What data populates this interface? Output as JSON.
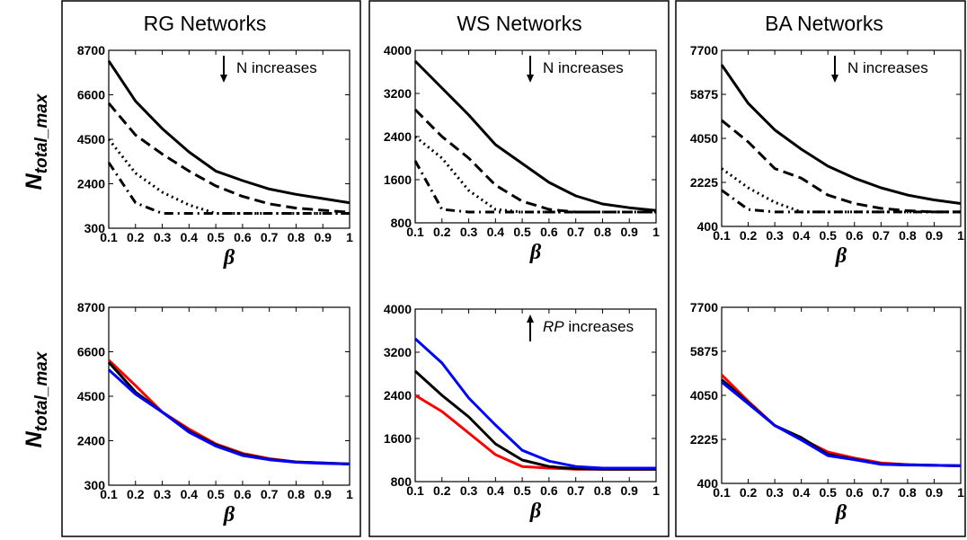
{
  "ylabel": {
    "main": "N",
    "sub": "total_max"
  },
  "panels": [
    {
      "title": "RG Networks"
    },
    {
      "title": "WS Networks"
    },
    {
      "title": "BA Networks"
    }
  ],
  "chart_data": [
    {
      "type": "line",
      "title": "RG Networks",
      "xlabel": "β",
      "ylabel": "N_total_max",
      "xlim": [
        0.1,
        1
      ],
      "ylim": [
        300,
        8700
      ],
      "xticks": [
        "0.1",
        "0.2",
        "0.3",
        "0.4",
        "0.5",
        "0.6",
        "0.7",
        "0.8",
        "0.9",
        "1"
      ],
      "yticks": [
        300,
        2400,
        4500,
        6600,
        8700
      ],
      "annotation": {
        "arrow": "down",
        "prefix": "",
        "italic": "",
        "text": "N increases"
      },
      "x": [
        0.1,
        0.2,
        0.3,
        0.4,
        0.5,
        0.6,
        0.7,
        0.8,
        0.9,
        1.0
      ],
      "series": [
        {
          "style": "solid",
          "color": "#000000",
          "values": [
            8200,
            6300,
            5000,
            3900,
            3000,
            2550,
            2150,
            1900,
            1700,
            1500
          ]
        },
        {
          "style": "dashed",
          "color": "#000000",
          "values": [
            6200,
            4700,
            3800,
            3000,
            2300,
            1800,
            1450,
            1250,
            1150,
            1050
          ]
        },
        {
          "style": "dotted",
          "color": "#000000",
          "values": [
            4500,
            2900,
            2000,
            1400,
            1000,
            1000,
            1000,
            1000,
            1000,
            1000
          ]
        },
        {
          "style": "dashdot",
          "color": "#000000",
          "values": [
            3400,
            1500,
            1000,
            1000,
            1000,
            1000,
            1000,
            1000,
            1000,
            1000
          ]
        }
      ]
    },
    {
      "type": "line",
      "title": "WS Networks",
      "xlabel": "β",
      "ylabel": "N_total_max",
      "xlim": [
        0.1,
        1
      ],
      "ylim": [
        800,
        4000
      ],
      "xticks": [
        "0.1",
        "0.2",
        "0.3",
        "0.4",
        "0.5",
        "0.6",
        "0.7",
        "0.8",
        "0.9",
        "1"
      ],
      "yticks": [
        800,
        1600,
        2400,
        3200,
        4000
      ],
      "annotation": {
        "arrow": "down",
        "prefix": "",
        "italic": "",
        "text": "N increases"
      },
      "x": [
        0.1,
        0.2,
        0.3,
        0.4,
        0.5,
        0.6,
        0.7,
        0.8,
        0.9,
        1.0
      ],
      "series": [
        {
          "style": "solid",
          "color": "#000000",
          "values": [
            3800,
            3300,
            2800,
            2250,
            1900,
            1550,
            1300,
            1150,
            1080,
            1030
          ]
        },
        {
          "style": "dashed",
          "color": "#000000",
          "values": [
            2900,
            2400,
            2000,
            1500,
            1200,
            1050,
            1000,
            1000,
            1000,
            1000
          ]
        },
        {
          "style": "dotted",
          "color": "#000000",
          "values": [
            2400,
            2000,
            1400,
            1050,
            1000,
            1000,
            1000,
            1000,
            1000,
            1000
          ]
        },
        {
          "style": "dashdot",
          "color": "#000000",
          "values": [
            1950,
            1050,
            1000,
            1000,
            1000,
            1000,
            1000,
            1000,
            1000,
            1000
          ]
        }
      ]
    },
    {
      "type": "line",
      "title": "BA Networks",
      "xlabel": "β",
      "ylabel": "N_total_max",
      "xlim": [
        0.1,
        1
      ],
      "ylim": [
        400,
        7700
      ],
      "xticks": [
        "0.1",
        "0.2",
        "0.3",
        "0.4",
        "0.5",
        "0.6",
        "0.7",
        "0.8",
        "0.9",
        "1"
      ],
      "yticks": [
        400,
        2225,
        4050,
        5875,
        7700
      ],
      "annotation": {
        "arrow": "down",
        "prefix": "",
        "italic": "",
        "text": "N increases"
      },
      "x": [
        0.1,
        0.2,
        0.3,
        0.4,
        0.5,
        0.6,
        0.7,
        0.8,
        0.9,
        1.0
      ],
      "series": [
        {
          "style": "solid",
          "color": "#000000",
          "values": [
            7100,
            5500,
            4400,
            3600,
            2900,
            2400,
            2000,
            1700,
            1500,
            1350
          ]
        },
        {
          "style": "dashed",
          "color": "#000000",
          "values": [
            4800,
            3900,
            2800,
            2400,
            1700,
            1350,
            1150,
            1050,
            1000,
            1000
          ]
        },
        {
          "style": "dotted",
          "color": "#000000",
          "values": [
            2800,
            2000,
            1400,
            1000,
            1000,
            1000,
            1000,
            1000,
            1000,
            1000
          ]
        },
        {
          "style": "dashdot",
          "color": "#000000",
          "values": [
            1900,
            1100,
            1000,
            1000,
            1000,
            1000,
            1000,
            1000,
            1000,
            1000
          ]
        }
      ]
    },
    {
      "type": "line",
      "title": "",
      "xlabel": "β",
      "ylabel": "N_total_max",
      "xlim": [
        0.1,
        1
      ],
      "ylim": [
        300,
        8700
      ],
      "xticks": [
        "0.1",
        "0.2",
        "0.3",
        "0.4",
        "0.5",
        "0.6",
        "0.7",
        "0.8",
        "0.9",
        "1"
      ],
      "yticks": [
        300,
        2400,
        4500,
        6600,
        8700
      ],
      "x": [
        0.1,
        0.2,
        0.3,
        0.4,
        0.5,
        0.6,
        0.7,
        0.8,
        0.9,
        1.0
      ],
      "series": [
        {
          "style": "solid",
          "color": "#ff0000",
          "values": [
            6200,
            5000,
            3750,
            2950,
            2250,
            1800,
            1550,
            1400,
            1350,
            1300
          ]
        },
        {
          "style": "solid",
          "color": "#000000",
          "values": [
            6100,
            4700,
            3750,
            2850,
            2200,
            1750,
            1520,
            1400,
            1350,
            1300
          ]
        },
        {
          "style": "solid",
          "color": "#0000ff",
          "values": [
            5750,
            4600,
            3750,
            2800,
            2150,
            1700,
            1500,
            1380,
            1330,
            1300
          ]
        }
      ]
    },
    {
      "type": "line",
      "title": "",
      "xlabel": "β",
      "ylabel": "N_total_max",
      "xlim": [
        0.1,
        1
      ],
      "ylim": [
        800,
        4000
      ],
      "xticks": [
        "0.1",
        "0.2",
        "0.3",
        "0.4",
        "0.5",
        "0.6",
        "0.7",
        "0.8",
        "0.9",
        "1"
      ],
      "yticks": [
        800,
        1600,
        2400,
        3200,
        4000
      ],
      "annotation": {
        "arrow": "up",
        "prefix": "",
        "italic": "RP",
        "text": " increases"
      },
      "x": [
        0.1,
        0.2,
        0.3,
        0.4,
        0.5,
        0.6,
        0.7,
        0.8,
        0.9,
        1.0
      ],
      "series": [
        {
          "style": "solid",
          "color": "#ff0000",
          "values": [
            2400,
            2100,
            1700,
            1300,
            1080,
            1050,
            1030,
            1030,
            1030,
            1030
          ]
        },
        {
          "style": "solid",
          "color": "#000000",
          "values": [
            2850,
            2400,
            2000,
            1500,
            1200,
            1080,
            1040,
            1030,
            1030,
            1030
          ]
        },
        {
          "style": "solid",
          "color": "#0000ff",
          "values": [
            3450,
            3000,
            2350,
            1850,
            1380,
            1180,
            1080,
            1050,
            1050,
            1050
          ]
        }
      ]
    },
    {
      "type": "line",
      "title": "",
      "xlabel": "β",
      "ylabel": "N_total_max",
      "xlim": [
        0.1,
        1
      ],
      "ylim": [
        400,
        7700
      ],
      "xticks": [
        "0.1",
        "0.2",
        "0.3",
        "0.4",
        "0.5",
        "0.6",
        "0.7",
        "0.8",
        "0.9",
        "1"
      ],
      "yticks": [
        400,
        2225,
        4050,
        5875,
        7700
      ],
      "x": [
        0.1,
        0.2,
        0.3,
        0.4,
        0.5,
        0.6,
        0.7,
        0.8,
        0.9,
        1.0
      ],
      "series": [
        {
          "style": "solid",
          "color": "#ff0000",
          "values": [
            4900,
            3800,
            2800,
            2250,
            1700,
            1450,
            1250,
            1180,
            1150,
            1130
          ]
        },
        {
          "style": "solid",
          "color": "#000000",
          "values": [
            4700,
            3750,
            2800,
            2300,
            1600,
            1400,
            1200,
            1170,
            1150,
            1130
          ]
        },
        {
          "style": "solid",
          "color": "#0000ff",
          "values": [
            4600,
            3700,
            2800,
            2200,
            1550,
            1380,
            1190,
            1160,
            1150,
            1130
          ]
        }
      ]
    }
  ]
}
